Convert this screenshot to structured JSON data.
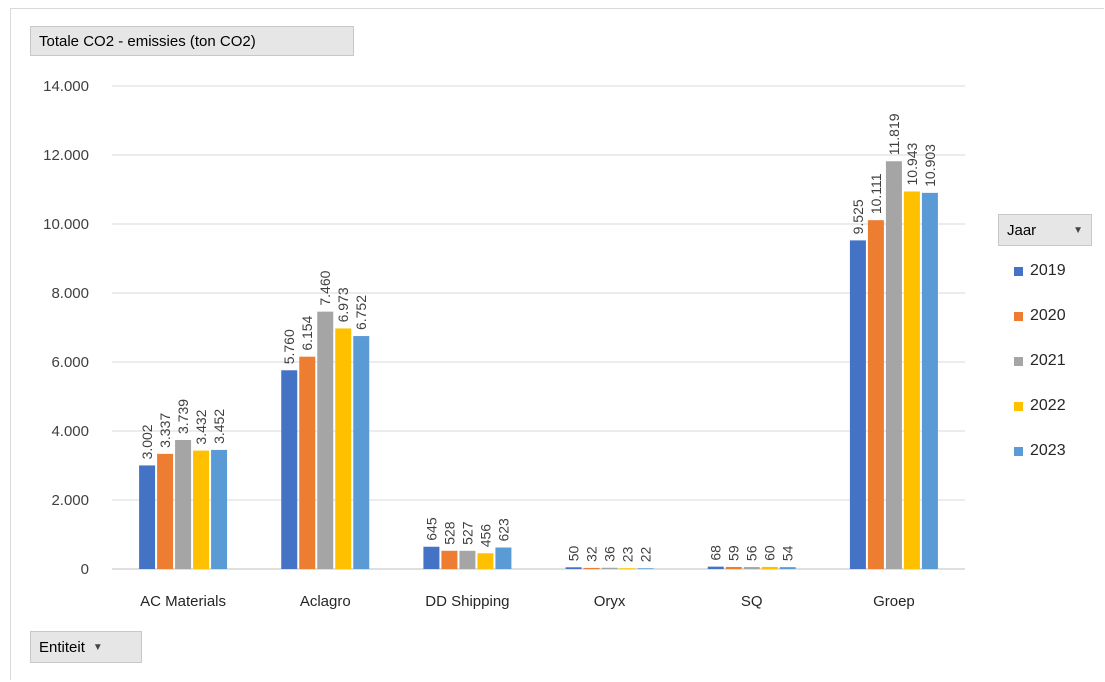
{
  "title_button": "Totale CO2 - emissies (ton CO2)",
  "entity_button": "Entiteit",
  "legend_button": "Jaar",
  "arrow_glyph": "▼",
  "chart_data": {
    "type": "bar",
    "categories": [
      "AC Materials",
      "Aclagro",
      "DD Shipping",
      "Oryx",
      "SQ",
      "Groep"
    ],
    "series": [
      {
        "name": "2019",
        "color": "#4472c4",
        "values": [
          3002,
          5760,
          645,
          50,
          68,
          9525
        ],
        "labels": [
          "3.002",
          "5.760",
          "645",
          "50",
          "68",
          "9.525"
        ]
      },
      {
        "name": "2020",
        "color": "#ed7d31",
        "values": [
          3337,
          6154,
          528,
          32,
          59,
          10111
        ],
        "labels": [
          "3.337",
          "6.154",
          "528",
          "32",
          "59",
          "10.111"
        ]
      },
      {
        "name": "2021",
        "color": "#a5a5a5",
        "values": [
          3739,
          7460,
          527,
          36,
          56,
          11819
        ],
        "labels": [
          "3.739",
          "7.460",
          "527",
          "36",
          "56",
          "11.819"
        ]
      },
      {
        "name": "2022",
        "color": "#ffc000",
        "values": [
          3432,
          6973,
          456,
          23,
          60,
          10943
        ],
        "labels": [
          "3.432",
          "6.973",
          "456",
          "23",
          "60",
          "10.943"
        ]
      },
      {
        "name": "2023",
        "color": "#5b9bd5",
        "values": [
          3452,
          6752,
          623,
          22,
          54,
          10903
        ],
        "labels": [
          "3.452",
          "6.752",
          "623",
          "22",
          "54",
          "10.903"
        ]
      }
    ],
    "yticks": [
      "0",
      "2.000",
      "4.000",
      "6.000",
      "8.000",
      "10.000",
      "12.000",
      "14.000"
    ],
    "ylim": [
      0,
      14000
    ],
    "grid": true,
    "legend_position": "right"
  }
}
